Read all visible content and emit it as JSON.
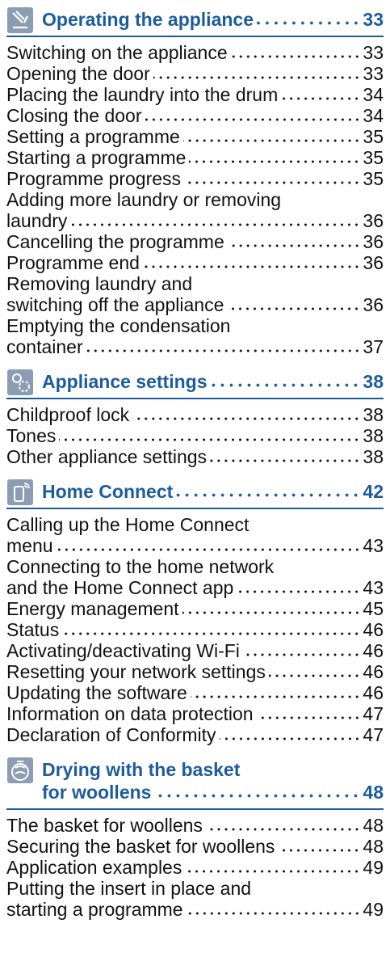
{
  "sections": [
    {
      "title_lines": [
        "Operating the appliance"
      ],
      "page": "33",
      "entries": [
        {
          "lines": [
            "Switching on the appliance"
          ],
          "page": "33"
        },
        {
          "lines": [
            "Opening the door"
          ],
          "page": "33"
        },
        {
          "lines": [
            "Placing the laundry into the drum"
          ],
          "page": "34"
        },
        {
          "lines": [
            "Closing the door"
          ],
          "page": "34"
        },
        {
          "lines": [
            "Setting a programme"
          ],
          "page": "35"
        },
        {
          "lines": [
            "Starting a programme"
          ],
          "page": "35"
        },
        {
          "lines": [
            "Programme progress"
          ],
          "page": "35"
        },
        {
          "lines": [
            "Adding more laundry or removing",
            "laundry"
          ],
          "page": "36"
        },
        {
          "lines": [
            "Cancelling the programme"
          ],
          "page": "36"
        },
        {
          "lines": [
            "Programme end"
          ],
          "page": "36"
        },
        {
          "lines": [
            "Removing laundry and",
            "switching off the appliance"
          ],
          "page": "36"
        },
        {
          "lines": [
            "Emptying the condensation",
            "container"
          ],
          "page": "37"
        }
      ]
    },
    {
      "title_lines": [
        "Appliance settings"
      ],
      "page": "38",
      "entries": [
        {
          "lines": [
            "Childproof lock"
          ],
          "page": "38"
        },
        {
          "lines": [
            "Tones"
          ],
          "page": "38"
        },
        {
          "lines": [
            "Other appliance settings"
          ],
          "page": "38"
        }
      ]
    },
    {
      "title_lines": [
        "Home Connect"
      ],
      "page": "42",
      "entries": [
        {
          "lines": [
            "Calling up the Home Connect",
            "menu"
          ],
          "page": "43"
        },
        {
          "lines": [
            "Connecting to the home network",
            "and the Home Connect app"
          ],
          "page": "43"
        },
        {
          "lines": [
            "Energy management"
          ],
          "page": "45"
        },
        {
          "lines": [
            "Status"
          ],
          "page": "46"
        },
        {
          "lines": [
            "Activating/deactivating Wi-Fi"
          ],
          "page": "46"
        },
        {
          "lines": [
            "Resetting your network settings"
          ],
          "page": "46"
        },
        {
          "lines": [
            "Updating the software"
          ],
          "page": "46"
        },
        {
          "lines": [
            "Information on data protection"
          ],
          "page": "47"
        },
        {
          "lines": [
            "Declaration of Conformity"
          ],
          "page": "47"
        }
      ]
    },
    {
      "title_lines": [
        "Drying with the basket",
        "for woollens"
      ],
      "page": "48",
      "entries": [
        {
          "lines": [
            "The basket for woollens"
          ],
          "page": "48"
        },
        {
          "lines": [
            "Securing the basket for woollens"
          ],
          "page": "48"
        },
        {
          "lines": [
            "Application examples"
          ],
          "page": "49"
        },
        {
          "lines": [
            "Putting the insert in place and",
            "starting a programme"
          ],
          "page": "49"
        }
      ]
    }
  ]
}
